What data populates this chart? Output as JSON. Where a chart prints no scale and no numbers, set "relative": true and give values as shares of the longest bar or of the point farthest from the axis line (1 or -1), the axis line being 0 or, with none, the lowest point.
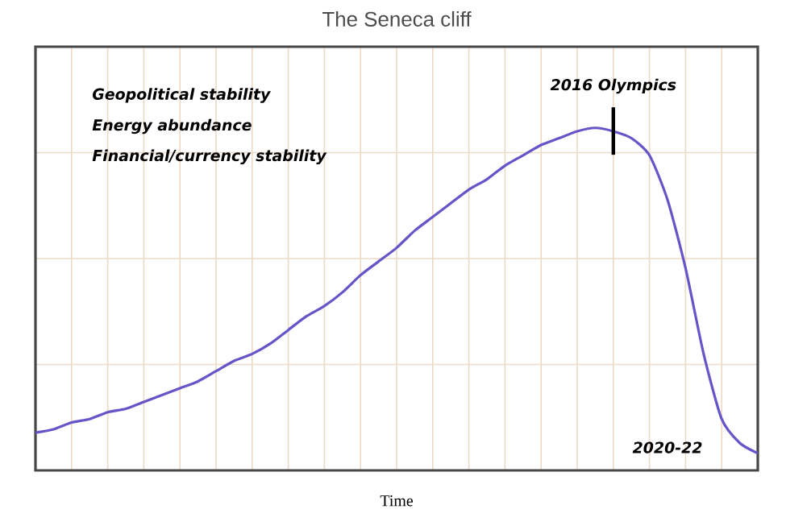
{
  "chart_data": {
    "type": "line",
    "title": "The Seneca cliff",
    "xlabel": "Time",
    "relative": true,
    "grid": true,
    "categories": [
      null,
      null,
      null,
      null,
      null,
      null,
      null,
      null,
      null,
      null,
      null,
      null,
      null,
      null,
      null,
      null,
      null,
      null,
      null,
      null,
      null,
      null,
      null,
      null,
      null,
      null,
      null,
      null,
      null,
      null,
      null,
      null,
      null,
      null,
      null,
      null,
      null,
      null,
      null,
      null,
      null
    ],
    "series": [
      {
        "color": "#6655c8",
        "values": [
          0.11,
          0.12,
          0.14,
          0.15,
          0.17,
          0.18,
          0.2,
          0.22,
          0.24,
          0.26,
          0.29,
          0.32,
          0.34,
          0.37,
          0.41,
          0.45,
          0.48,
          0.52,
          0.57,
          0.61,
          0.65,
          0.7,
          0.74,
          0.78,
          0.82,
          0.85,
          0.89,
          0.92,
          0.95,
          0.97,
          0.99,
          1.0,
          0.99,
          0.97,
          0.92,
          0.79,
          0.59,
          0.34,
          0.15,
          0.08,
          0.05
        ]
      }
    ],
    "annotations": [
      "Geopolitical stability",
      "Energy abundance",
      "Financial/currency stability",
      "2016 Olympics",
      "2020-22"
    ],
    "marker": "none",
    "line_style": "solid"
  }
}
